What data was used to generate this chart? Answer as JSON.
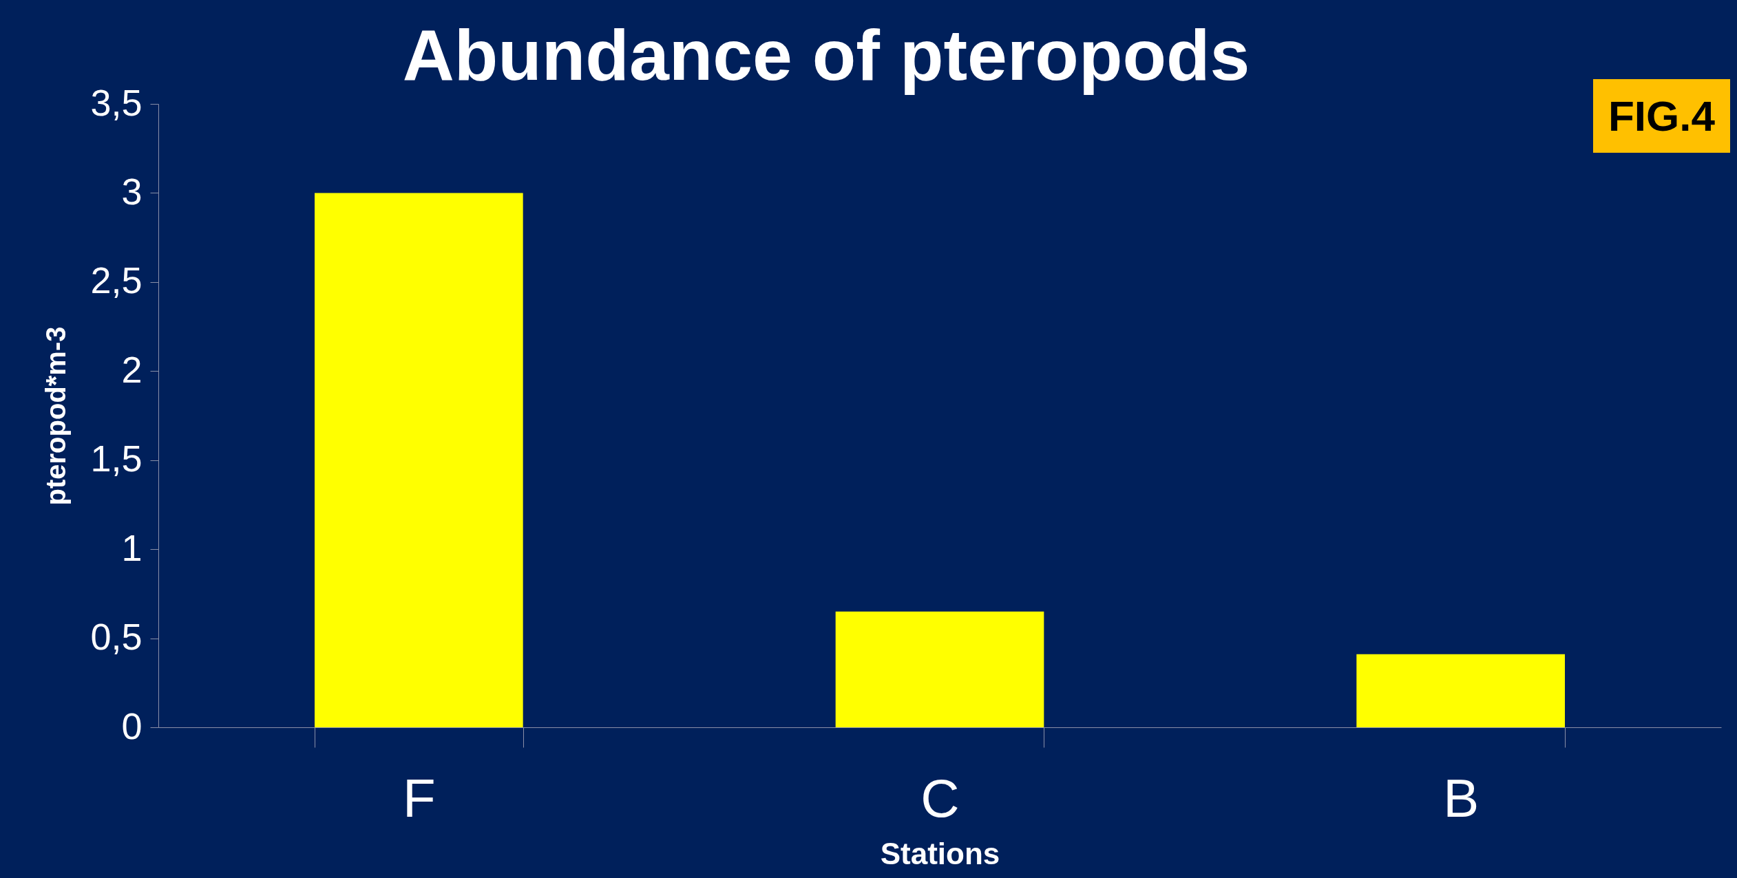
{
  "chart_data": {
    "type": "bar",
    "title": "Abundance of pteropods",
    "xlabel": "Stations",
    "ylabel": "pteropod*m-3",
    "categories": [
      "F",
      "C",
      "B"
    ],
    "values": [
      3,
      0.65,
      0.41
    ],
    "color": "#ffff00",
    "ylim": [
      0,
      3.5
    ],
    "yticks": [
      0,
      {
        "value": 0.5,
        "label": "0,5"
      },
      1,
      {
        "value": 1.5,
        "label": "1,5"
      },
      2,
      {
        "value": 2.5,
        "label": "2,5"
      },
      3,
      {
        "value": 3.5,
        "label": "3,5"
      }
    ],
    "grid": false,
    "annotations": [
      "FIG.4"
    ]
  }
}
